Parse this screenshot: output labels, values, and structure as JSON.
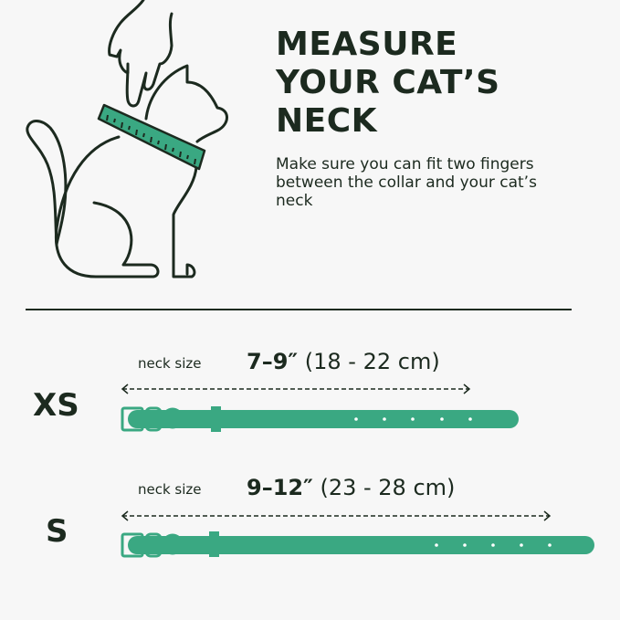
{
  "header": {
    "title_lines": [
      "MEASURE",
      "YOUR CAT’S",
      "NECK"
    ],
    "subtitle": "Make sure you can fit two fingers between the collar and your cat’s neck"
  },
  "illustration": {
    "icon": "cat-neck-measuring-icon",
    "accent_color": "#3aa882"
  },
  "sizes": [
    {
      "size": "XS",
      "neck_label": "neck size",
      "inches": "7–9″",
      "cm": "(18 - 22 cm)"
    },
    {
      "size": "S",
      "neck_label": "neck size",
      "inches": "9–12″",
      "cm": "(23 - 28 cm)"
    }
  ],
  "colors": {
    "text": "#1c2a1f",
    "collar": "#3aa882",
    "background": "#f7f7f7"
  }
}
